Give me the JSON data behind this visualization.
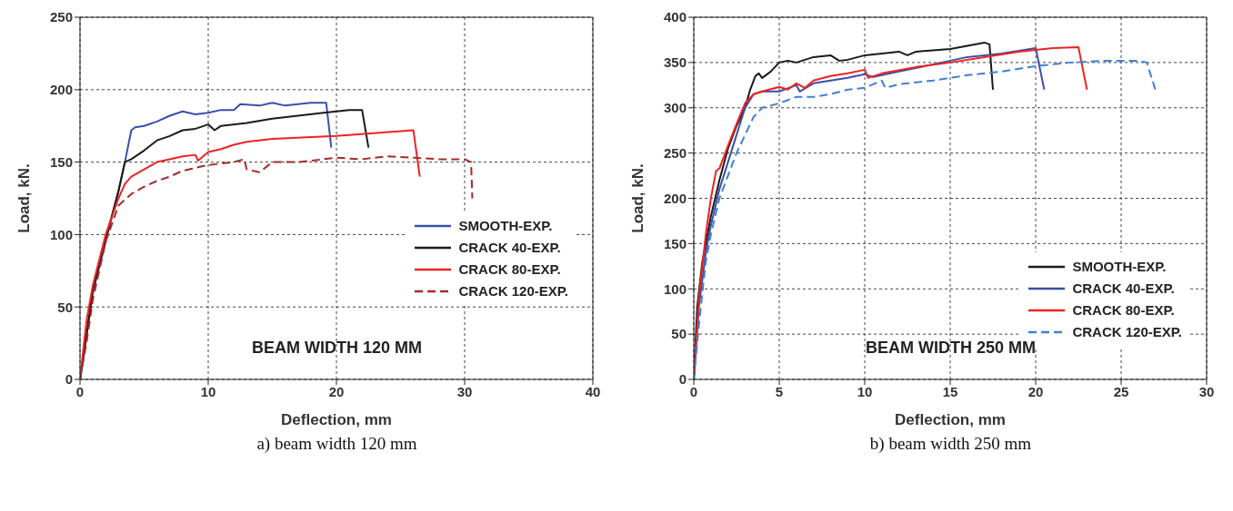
{
  "chart_data": [
    {
      "type": "line",
      "xlabel": "Deflection, mm",
      "ylabel": "Load, kN.",
      "xlim": [
        0,
        40
      ],
      "xticks": [
        0,
        10,
        20,
        30,
        40
      ],
      "ylim": [
        0,
        250
      ],
      "yticks": [
        0,
        50,
        100,
        150,
        200,
        250
      ],
      "grid": true,
      "legend": "right",
      "marker": "none",
      "annotations": [
        "BEAM WIDTH 120 MM",
        "a) beam width 120 mm"
      ],
      "series": [
        {
          "name": "SMOOTH-EXP.",
          "color": "#3a4fa8",
          "x": [
            0,
            0.5,
            1,
            2,
            3,
            3.5,
            4,
            4.3,
            5,
            6,
            7,
            8,
            9,
            10,
            11,
            12,
            12.5,
            14,
            15,
            16,
            17,
            18,
            19.2,
            19.6
          ],
          "values": [
            0,
            30,
            60,
            95,
            130,
            150,
            172,
            174,
            175,
            178,
            182,
            185,
            183,
            184,
            186,
            186,
            190,
            189,
            191,
            189,
            190,
            191,
            191,
            160
          ]
        },
        {
          "name": "CRACK 40-EXP.",
          "color": "#1a1a1a",
          "x": [
            0,
            0.5,
            1,
            2,
            3,
            3.5,
            4,
            5,
            6,
            7,
            8,
            9,
            10,
            10.5,
            11,
            13,
            15,
            17,
            19,
            21,
            22,
            22.5
          ],
          "values": [
            0,
            30,
            62,
            97,
            130,
            150,
            152,
            158,
            165,
            168,
            172,
            173,
            176,
            172,
            175,
            177,
            180,
            182,
            184,
            186,
            186,
            160
          ]
        },
        {
          "name": "CRACK 80-EXP.",
          "color": "#ee2222",
          "x": [
            0,
            0.5,
            1,
            2,
            3,
            3.5,
            4,
            5,
            6,
            7,
            8,
            9,
            9.2,
            10,
            11,
            12,
            13,
            15,
            20,
            26,
            26.5
          ],
          "values": [
            0,
            40,
            65,
            100,
            125,
            135,
            140,
            145,
            150,
            152,
            154,
            155,
            151,
            157,
            159,
            162,
            164,
            166,
            168,
            172,
            140
          ]
        },
        {
          "name": "CRACK 120-EXP.",
          "color": "#a52a2a",
          "line_style": "dashed",
          "x": [
            0,
            0.5,
            1,
            2,
            3,
            4,
            5,
            6,
            7,
            8,
            9,
            10,
            12,
            12.8,
            13,
            14,
            15,
            17,
            20,
            22,
            24,
            26,
            28,
            30,
            30.5,
            30.6
          ],
          "values": [
            0,
            25,
            55,
            95,
            120,
            128,
            133,
            137,
            140,
            144,
            146,
            148,
            150,
            152,
            145,
            143,
            150,
            150,
            153,
            152,
            154,
            153,
            152,
            152,
            150,
            125
          ]
        }
      ]
    },
    {
      "type": "line",
      "xlabel": "Deflection, mm",
      "ylabel": "Load, kN.",
      "xlim": [
        0,
        30
      ],
      "xticks": [
        0,
        5,
        10,
        15,
        20,
        25,
        30
      ],
      "ylim": [
        0,
        400
      ],
      "yticks": [
        0,
        50,
        100,
        150,
        200,
        250,
        300,
        350,
        400
      ],
      "grid": true,
      "legend": "bottom right",
      "marker": "none",
      "annotations": [
        "BEAM WIDTH 250 MM",
        "b) beam width 250 mm"
      ],
      "series": [
        {
          "name": "SMOOTH-EXP.",
          "color": "#1a1a1a",
          "x": [
            0,
            0.2,
            0.5,
            1,
            1.5,
            2,
            2.5,
            3,
            3.3,
            3.6,
            3.8,
            4,
            4.5,
            5,
            5.5,
            6,
            7,
            8,
            8.5,
            9,
            10,
            12,
            12.5,
            13,
            15,
            17,
            17.3,
            17.5
          ],
          "values": [
            0,
            80,
            130,
            180,
            220,
            255,
            280,
            300,
            320,
            335,
            338,
            333,
            340,
            350,
            352,
            350,
            356,
            358,
            352,
            353,
            358,
            362,
            358,
            362,
            365,
            372,
            370,
            320
          ]
        },
        {
          "name": "CRACK 40-EXP.",
          "color": "#3a4fa8",
          "x": [
            0,
            0.3,
            0.7,
            1,
            1.5,
            2,
            2.5,
            3,
            3.5,
            4,
            5,
            6,
            6.2,
            7,
            8,
            9,
            10,
            10.5,
            12,
            14,
            16,
            18,
            20,
            20.5
          ],
          "values": [
            0,
            80,
            140,
            170,
            210,
            240,
            270,
            300,
            315,
            318,
            318,
            325,
            318,
            327,
            330,
            333,
            337,
            334,
            340,
            348,
            356,
            360,
            366,
            320
          ]
        },
        {
          "name": "CRACK 80-EXP.",
          "color": "#ee2222",
          "x": [
            0,
            0.3,
            0.7,
            1,
            1.3,
            1.5,
            2,
            2.5,
            3,
            3.5,
            4,
            5,
            5.5,
            6,
            6.5,
            7,
            8,
            9,
            10,
            10.2,
            11,
            13,
            15,
            17,
            19,
            21,
            22.5,
            23
          ],
          "values": [
            0,
            90,
            160,
            200,
            230,
            233,
            258,
            282,
            305,
            315,
            318,
            323,
            320,
            327,
            322,
            330,
            335,
            338,
            342,
            333,
            338,
            345,
            350,
            356,
            362,
            366,
            367,
            320
          ]
        },
        {
          "name": "CRACK 120-EXP.",
          "color": "#3f7fd6",
          "line_style": "dashed",
          "x": [
            0,
            0.3,
            0.7,
            1,
            1.5,
            2,
            2.5,
            3,
            3.5,
            4,
            5,
            6,
            7,
            8,
            9,
            10,
            11,
            11.2,
            12,
            14,
            16,
            18,
            20,
            22,
            24,
            26,
            26.5,
            27
          ],
          "values": [
            0,
            60,
            130,
            160,
            200,
            225,
            250,
            270,
            290,
            300,
            305,
            312,
            312,
            315,
            320,
            322,
            330,
            322,
            326,
            330,
            336,
            340,
            346,
            350,
            352,
            352,
            350,
            320
          ]
        }
      ]
    }
  ]
}
